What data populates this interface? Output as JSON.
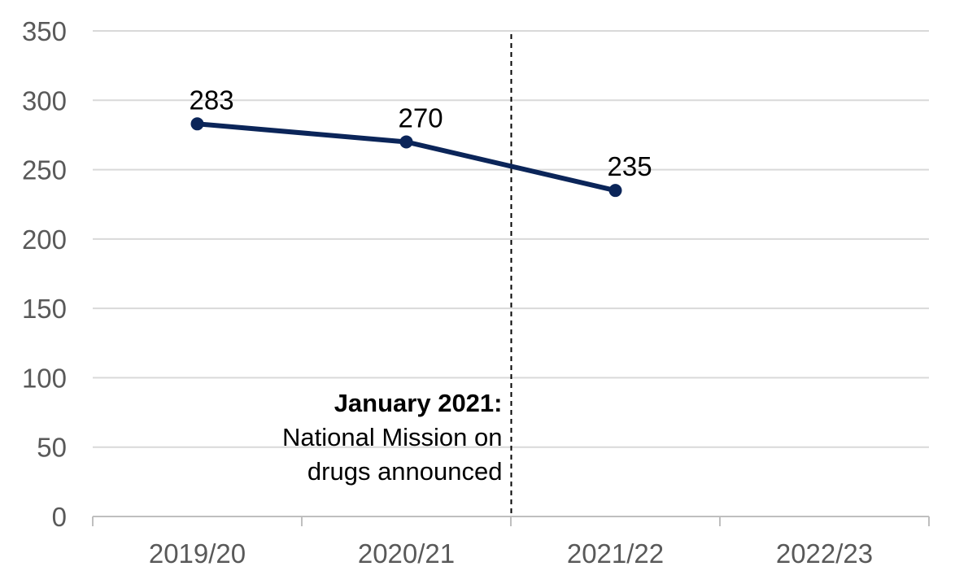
{
  "chart_data": {
    "type": "line",
    "title": "",
    "xlabel": "",
    "ylabel": "",
    "categories": [
      "2019/20",
      "2020/21",
      "2021/22",
      "2022/23"
    ],
    "series": [
      {
        "values": [
          283,
          270,
          235,
          null
        ],
        "color": "#0b2559"
      }
    ],
    "data_labels": [
      "283",
      "270",
      "235"
    ],
    "ylim": [
      0,
      350
    ],
    "yticks": [
      0,
      50,
      100,
      150,
      200,
      250,
      300,
      350
    ],
    "ytick_labels": [
      "0",
      "50",
      "100",
      "150",
      "200",
      "250",
      "300",
      "350"
    ],
    "grid": true,
    "legend": "none",
    "annotation": {
      "title": "January 2021:",
      "lines": [
        "National Mission on",
        "drugs announced"
      ],
      "position_between": [
        "2020/21",
        "2021/22"
      ]
    },
    "colors": {
      "line": "#0b2559",
      "grid": "#d9d9d9",
      "axis": "#bfbfbf",
      "tick_text": "#595959",
      "annotation_line": "#000000"
    }
  }
}
